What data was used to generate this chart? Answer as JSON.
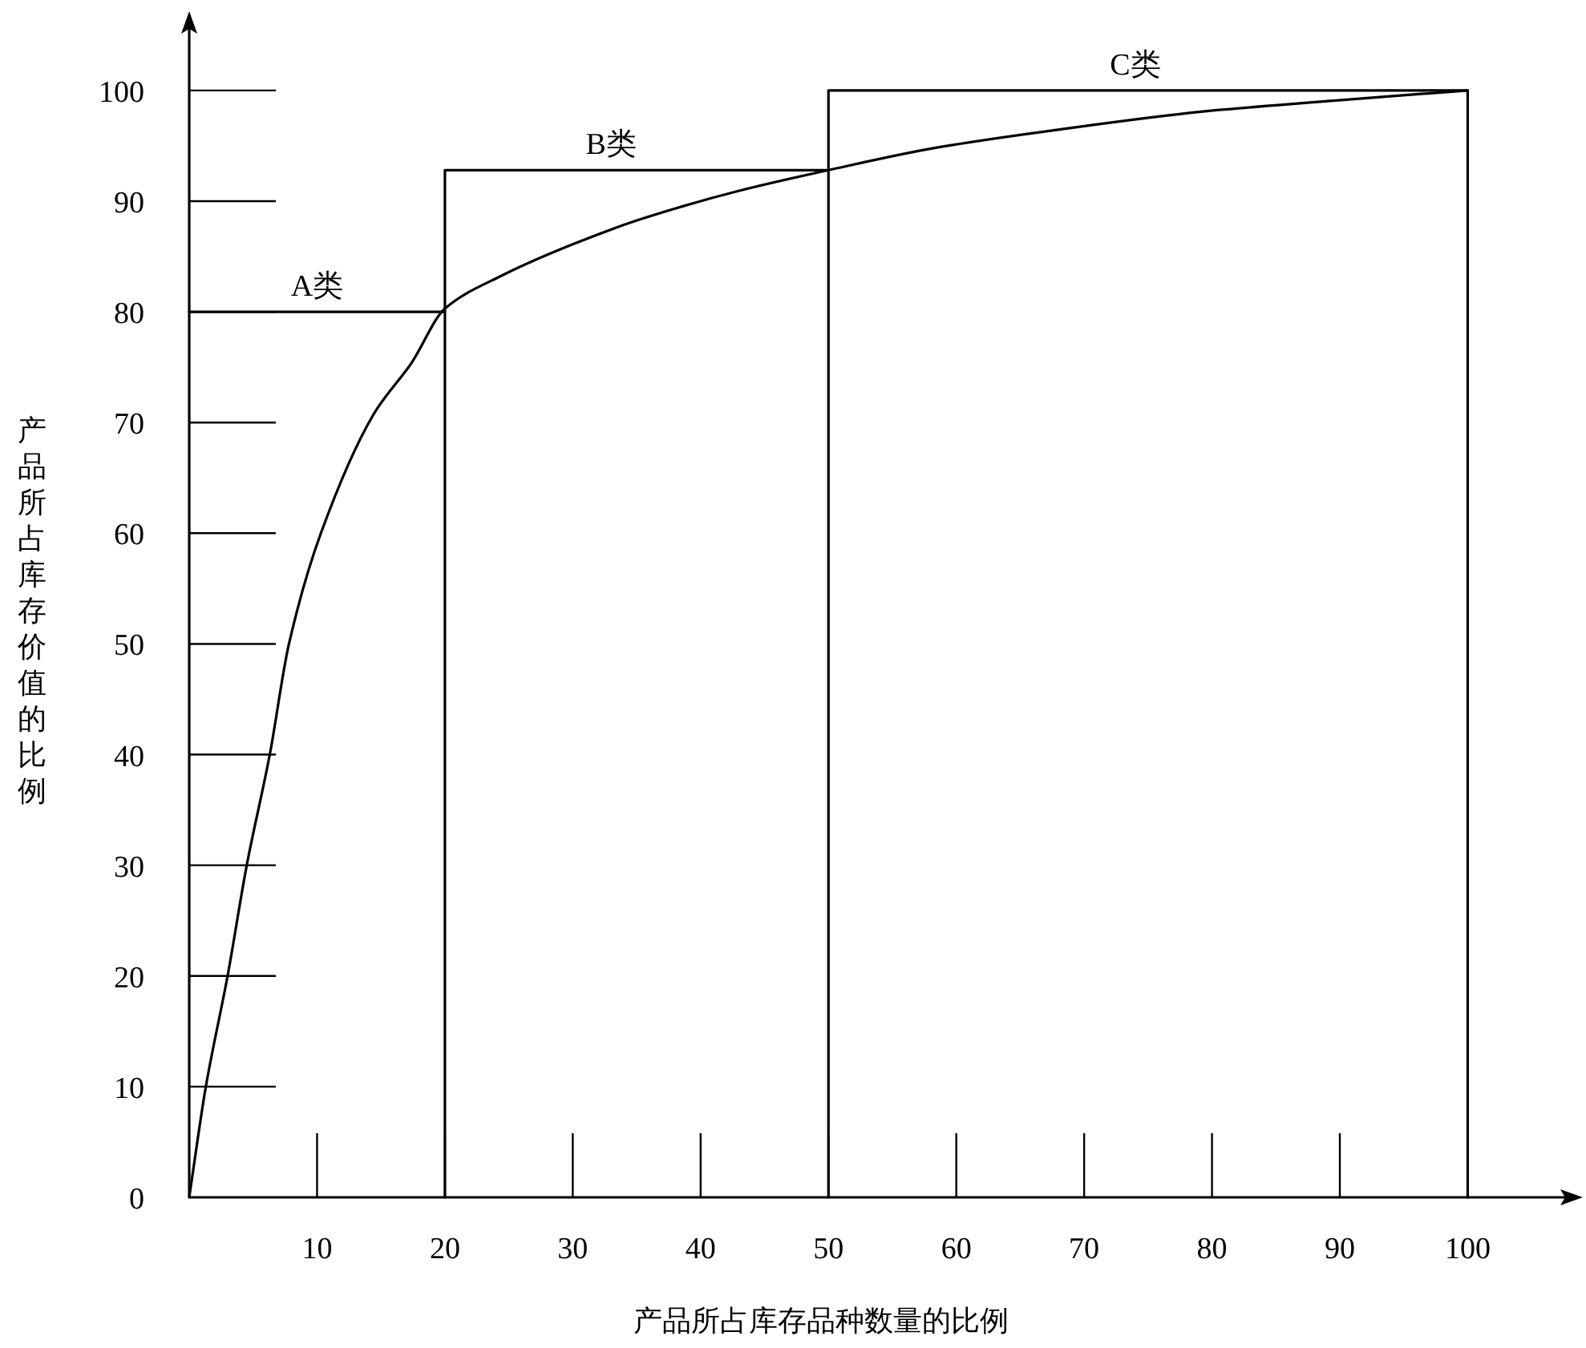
{
  "chart_data": {
    "type": "line",
    "xlabel": "产品所占库存品种数量的比例",
    "ylabel": "产品所占库存价值的比例",
    "xlim": [
      0,
      108
    ],
    "ylim": [
      0,
      106
    ],
    "xticks": [
      10,
      20,
      30,
      40,
      50,
      60,
      70,
      80,
      90,
      100
    ],
    "yticks": [
      0,
      10,
      20,
      30,
      40,
      50,
      60,
      70,
      80,
      90,
      100
    ],
    "grid": false,
    "marker": "none",
    "line_style": "solid",
    "series": [
      {
        "color": "#000000",
        "x": [
          0,
          1.3,
          3,
          4.5,
          6.3,
          7.8,
          10.3,
          14.4,
          17.4,
          20,
          24.5,
          30,
          35.4,
          42.9,
          50,
          58.3,
          67.6,
          79.3,
          89.7,
          100
        ],
        "values": [
          0,
          10,
          20,
          30,
          40,
          50,
          60,
          70.7,
          75.4,
          80.3,
          83.3,
          86.1,
          88.4,
          90.9,
          92.8,
          94.8,
          96.4,
          98.1,
          99.1,
          100
        ]
      },
      {
        "color": "#000000",
        "x": [
          0,
          20,
          20,
          20,
          50,
          50,
          50,
          100,
          100
        ],
        "values": [
          80,
          80,
          0,
          92.8,
          92.8,
          0,
          100,
          100,
          0
        ]
      }
    ],
    "annotations": [
      {
        "text": "A类",
        "x": 10,
        "y": 80
      },
      {
        "text": "B类",
        "x": 33,
        "y": 92.8
      },
      {
        "text": "C类",
        "x": 74,
        "y": 100
      }
    ]
  }
}
